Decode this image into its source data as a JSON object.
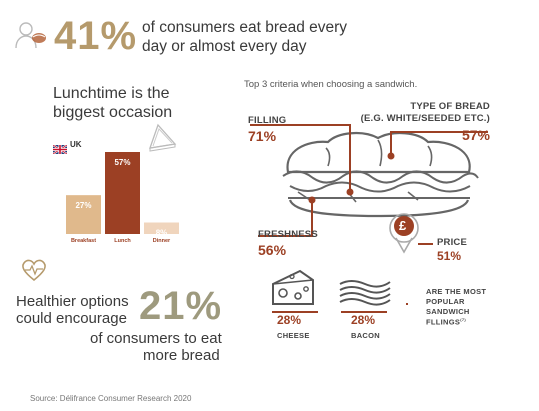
{
  "header": {
    "stat": "41%",
    "text_line1": "of consumers eat bread every",
    "text_line2": "day or almost every day"
  },
  "lunch": {
    "title_line1": "Lunchtime is the",
    "title_line2": "biggest occasion",
    "region": "UK"
  },
  "chart_data": {
    "type": "bar",
    "categories": [
      "Breakfast",
      "Lunch",
      "Dinner"
    ],
    "values": [
      27,
      57,
      8
    ],
    "value_labels": [
      "27%",
      "57%",
      "8%"
    ],
    "ylim": [
      0,
      57
    ],
    "colors": [
      "#e0b98c",
      "#9c4024",
      "#f0d5bd"
    ]
  },
  "criteria": {
    "heading": "Top 3 criteria when choosing a sandwich.",
    "filling_label": "FILLING",
    "filling_value": "71%",
    "type_label_line1": "TYPE OF BREAD",
    "type_label_line2": "(E.G. WHITE/SEEDED ETC.)",
    "type_value": "57%",
    "freshness_label": "FRESHNESS",
    "freshness_value": "56%",
    "price_label": "PRICE",
    "price_value": "51%",
    "price_symbol": "£"
  },
  "fillings": {
    "cheese_value": "28%",
    "cheese_label": "CHEESE",
    "bacon_value": "28%",
    "bacon_label": "BACON",
    "note_line1": "ARE THE MOST",
    "note_line2": "POPULAR",
    "note_line3": "SANDWICH",
    "note_line4": "FLLINGS",
    "note_sup": "(7)"
  },
  "healthier": {
    "line1": "Healthier options",
    "line2": "could encourage",
    "stat": "21%",
    "line3": "of consumers to eat",
    "line4": "more bread"
  },
  "footer": {
    "source": "Source: Délifrance Consumer Research 2020"
  },
  "colors": {
    "accent": "#9c4024",
    "tan": "#b59a6c"
  }
}
